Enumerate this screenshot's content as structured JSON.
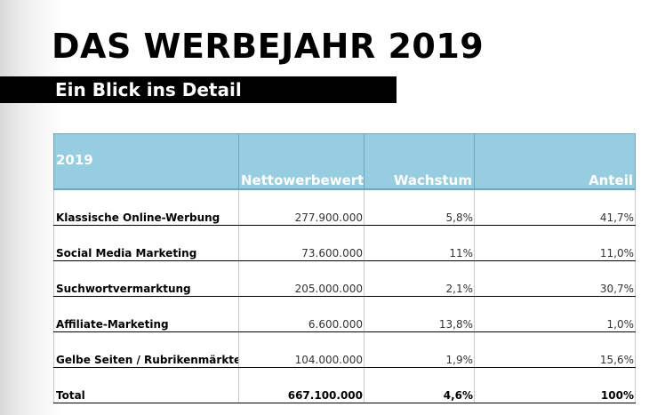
{
  "header": {
    "title": "DAS WERBEJAHR 2019",
    "subtitle": "Ein Blick ins Detail"
  },
  "table": {
    "columns": [
      "2019",
      "Nettowerbewert",
      "Wachstum",
      "Anteil"
    ],
    "rows": [
      [
        "Klassische Online-Werbung",
        "277.900.000",
        "5,8%",
        "41,7%"
      ],
      [
        "Social Media Marketing",
        "73.600.000",
        "11%",
        "11,0%"
      ],
      [
        "Suchwortvermarktung",
        "205.000.000",
        "2,1%",
        "30,7%"
      ],
      [
        "Affiliate-Marketing",
        "6.600.000",
        "13,8%",
        "1,0%"
      ],
      [
        "Gelbe Seiten / Rubrikenmärkte",
        "104.000.000",
        "1,9%",
        "15,6%"
      ],
      [
        "Total",
        "667.100.000",
        "4,6%",
        "100%"
      ]
    ]
  },
  "colors": {
    "header_bg": "#96cde0",
    "subtitle_bg": "#000000"
  }
}
